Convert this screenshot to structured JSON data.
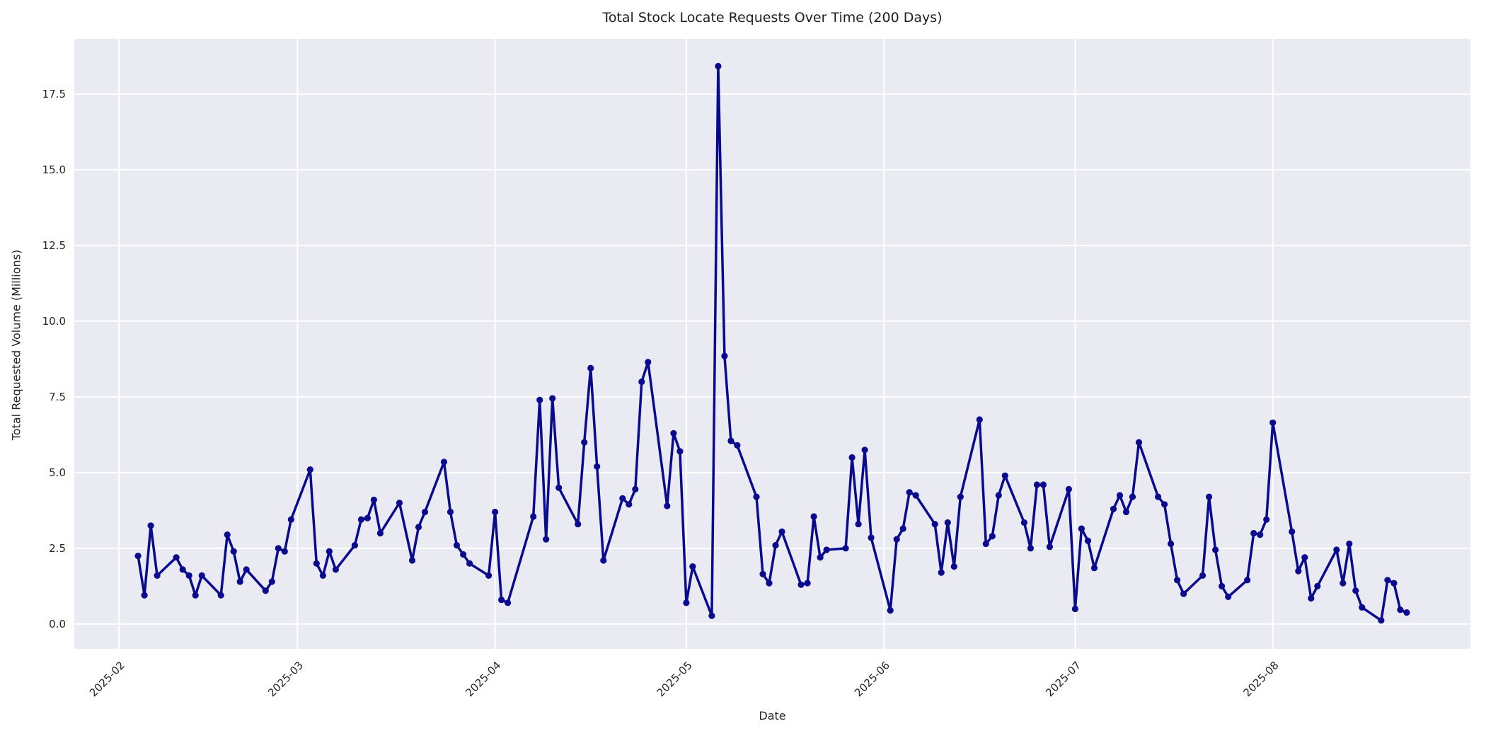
{
  "chart_data": {
    "type": "line",
    "title": "Total Stock Locate Requests Over Time (200 Days)",
    "xlabel": "Date",
    "ylabel": "Total Requested Volume (Millions)",
    "legend": null,
    "grid": true,
    "style": {
      "line_color": "#0a0a8f",
      "marker_color": "#0a0a8f",
      "plot_bg": "#eaeaf2",
      "grid_color": "#ffffff",
      "text_color": "#262626",
      "figure_bg": "#ffffff"
    },
    "xlim": [
      "2025-01-25",
      "2025-09-01"
    ],
    "ylim": [
      -0.82,
      19.32
    ],
    "y_ticks": [
      0.0,
      2.5,
      5.0,
      7.5,
      10.0,
      12.5,
      15.0,
      17.5
    ],
    "x_ticks": [
      {
        "label": "2025-02",
        "date": "2025-02-01"
      },
      {
        "label": "2025-03",
        "date": "2025-03-01"
      },
      {
        "label": "2025-04",
        "date": "2025-04-01"
      },
      {
        "label": "2025-05",
        "date": "2025-05-01"
      },
      {
        "label": "2025-06",
        "date": "2025-06-01"
      },
      {
        "label": "2025-07",
        "date": "2025-07-01"
      },
      {
        "label": "2025-08",
        "date": "2025-08-01"
      }
    ],
    "series": [
      {
        "name": "Total Requested Volume",
        "dates": [
          "2025-02-04",
          "2025-02-05",
          "2025-02-06",
          "2025-02-07",
          "2025-02-10",
          "2025-02-11",
          "2025-02-12",
          "2025-02-13",
          "2025-02-14",
          "2025-02-17",
          "2025-02-18",
          "2025-02-19",
          "2025-02-20",
          "2025-02-21",
          "2025-02-24",
          "2025-02-25",
          "2025-02-26",
          "2025-02-27",
          "2025-02-28",
          "2025-03-03",
          "2025-03-04",
          "2025-03-05",
          "2025-03-06",
          "2025-03-07",
          "2025-03-10",
          "2025-03-11",
          "2025-03-12",
          "2025-03-13",
          "2025-03-14",
          "2025-03-17",
          "2025-03-19",
          "2025-03-20",
          "2025-03-21",
          "2025-03-24",
          "2025-03-25",
          "2025-03-26",
          "2025-03-27",
          "2025-03-28",
          "2025-03-31",
          "2025-04-01",
          "2025-04-02",
          "2025-04-03",
          "2025-04-07",
          "2025-04-08",
          "2025-04-09",
          "2025-04-10",
          "2025-04-11",
          "2025-04-14",
          "2025-04-15",
          "2025-04-16",
          "2025-04-17",
          "2025-04-18",
          "2025-04-21",
          "2025-04-22",
          "2025-04-23",
          "2025-04-24",
          "2025-04-25",
          "2025-04-28",
          "2025-04-29",
          "2025-04-30",
          "2025-05-01",
          "2025-05-02",
          "2025-05-05",
          "2025-05-06",
          "2025-05-07",
          "2025-05-08",
          "2025-05-09",
          "2025-05-12",
          "2025-05-13",
          "2025-05-14",
          "2025-05-15",
          "2025-05-16",
          "2025-05-19",
          "2025-05-20",
          "2025-05-21",
          "2025-05-22",
          "2025-05-23",
          "2025-05-26",
          "2025-05-27",
          "2025-05-28",
          "2025-05-29",
          "2025-05-30",
          "2025-06-02",
          "2025-06-03",
          "2025-06-04",
          "2025-06-05",
          "2025-06-06",
          "2025-06-09",
          "2025-06-10",
          "2025-06-11",
          "2025-06-12",
          "2025-06-13",
          "2025-06-16",
          "2025-06-17",
          "2025-06-18",
          "2025-06-19",
          "2025-06-20",
          "2025-06-23",
          "2025-06-24",
          "2025-06-25",
          "2025-06-26",
          "2025-06-27",
          "2025-06-30",
          "2025-07-01",
          "2025-07-02",
          "2025-07-03",
          "2025-07-04",
          "2025-07-07",
          "2025-07-08",
          "2025-07-09",
          "2025-07-10",
          "2025-07-11",
          "2025-07-14",
          "2025-07-15",
          "2025-07-16",
          "2025-07-17",
          "2025-07-18",
          "2025-07-21",
          "2025-07-22",
          "2025-07-23",
          "2025-07-24",
          "2025-07-25",
          "2025-07-28",
          "2025-07-29",
          "2025-07-30",
          "2025-07-31",
          "2025-08-01",
          "2025-08-04",
          "2025-08-05",
          "2025-08-06",
          "2025-08-07",
          "2025-08-08",
          "2025-08-11",
          "2025-08-12",
          "2025-08-13",
          "2025-08-14",
          "2025-08-15",
          "2025-08-18",
          "2025-08-19",
          "2025-08-20",
          "2025-08-21",
          "2025-08-22"
        ],
        "values": [
          2.25,
          0.95,
          3.25,
          1.6,
          2.2,
          1.8,
          1.6,
          0.95,
          1.6,
          0.95,
          2.95,
          2.4,
          1.4,
          1.8,
          1.1,
          1.4,
          2.5,
          2.4,
          3.45,
          5.1,
          2.0,
          1.6,
          2.4,
          1.8,
          2.6,
          3.45,
          3.5,
          4.1,
          3.0,
          4.0,
          2.1,
          3.2,
          3.7,
          5.35,
          3.7,
          2.6,
          2.3,
          2.0,
          1.6,
          3.7,
          0.8,
          0.7,
          3.55,
          7.4,
          2.8,
          7.45,
          4.5,
          3.3,
          6.0,
          8.45,
          5.2,
          2.1,
          4.15,
          3.95,
          4.45,
          8.0,
          8.65,
          3.9,
          6.3,
          5.7,
          0.7,
          1.9,
          0.27,
          18.42,
          8.85,
          6.05,
          5.9,
          4.2,
          1.65,
          1.35,
          2.6,
          3.05,
          1.3,
          1.35,
          3.55,
          2.2,
          2.45,
          2.5,
          5.5,
          3.3,
          5.75,
          2.85,
          0.45,
          2.8,
          3.15,
          4.35,
          4.25,
          3.3,
          1.7,
          3.35,
          1.9,
          4.2,
          6.75,
          2.65,
          2.9,
          4.25,
          4.9,
          3.35,
          2.5,
          4.6,
          4.6,
          2.55,
          4.45,
          0.5,
          3.15,
          2.75,
          1.85,
          3.8,
          4.25,
          3.7,
          4.2,
          6.0,
          4.2,
          3.95,
          2.65,
          1.45,
          1.0,
          1.6,
          4.2,
          2.45,
          1.25,
          0.9,
          1.45,
          3.0,
          2.95,
          3.45,
          6.65,
          3.05,
          1.75,
          2.2,
          0.85,
          1.25,
          2.45,
          1.35,
          2.65,
          1.1,
          0.55,
          0.12,
          1.45,
          1.35,
          0.47,
          0.38
        ]
      }
    ]
  }
}
